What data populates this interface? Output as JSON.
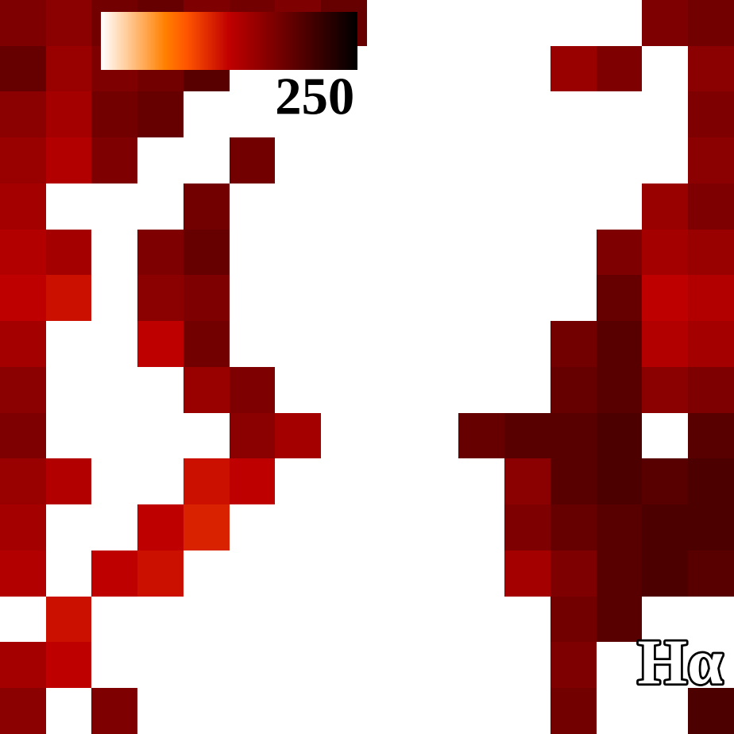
{
  "chart_data": {
    "type": "heatmap",
    "annotations": [
      "Hα"
    ],
    "tick_labels": false,
    "colorbar_range": [
      0,
      300
    ],
    "colorbar_ticks": [
      250
    ],
    "cells": [
      [
        200,
        190,
        210,
        220,
        200,
        210,
        200,
        220,
        null,
        null,
        null,
        null,
        null,
        null,
        200,
        210
      ],
      [
        220,
        180,
        200,
        210,
        230,
        null,
        null,
        null,
        null,
        null,
        null,
        null,
        180,
        200,
        null,
        190
      ],
      [
        190,
        170,
        210,
        220,
        null,
        null,
        null,
        null,
        null,
        null,
        null,
        null,
        null,
        null,
        null,
        200
      ],
      [
        180,
        160,
        200,
        null,
        null,
        210,
        null,
        null,
        null,
        null,
        null,
        null,
        null,
        null,
        null,
        190
      ],
      [
        170,
        null,
        null,
        null,
        210,
        null,
        null,
        null,
        null,
        null,
        null,
        null,
        null,
        null,
        180,
        200
      ],
      [
        160,
        170,
        null,
        200,
        220,
        null,
        null,
        null,
        null,
        null,
        null,
        null,
        null,
        200,
        170,
        180
      ],
      [
        150,
        140,
        null,
        190,
        200,
        null,
        null,
        null,
        null,
        null,
        null,
        null,
        null,
        220,
        150,
        160
      ],
      [
        170,
        null,
        null,
        150,
        210,
        null,
        null,
        null,
        null,
        null,
        null,
        null,
        210,
        230,
        160,
        170
      ],
      [
        190,
        null,
        null,
        null,
        180,
        200,
        null,
        null,
        null,
        null,
        null,
        null,
        220,
        230,
        190,
        200
      ],
      [
        200,
        null,
        null,
        null,
        null,
        190,
        170,
        null,
        null,
        null,
        220,
        230,
        230,
        240,
        null,
        230
      ],
      [
        180,
        160,
        null,
        null,
        140,
        150,
        null,
        null,
        null,
        null,
        null,
        190,
        230,
        240,
        230,
        240
      ],
      [
        170,
        null,
        null,
        150,
        130,
        null,
        null,
        null,
        null,
        null,
        null,
        200,
        220,
        230,
        240,
        240
      ],
      [
        160,
        null,
        150,
        140,
        null,
        null,
        null,
        null,
        null,
        null,
        null,
        170,
        200,
        230,
        240,
        230
      ],
      [
        null,
        140,
        null,
        null,
        null,
        null,
        null,
        null,
        null,
        null,
        null,
        null,
        210,
        230,
        null,
        null
      ],
      [
        170,
        150,
        null,
        null,
        null,
        null,
        null,
        null,
        null,
        null,
        null,
        null,
        200,
        null,
        null,
        null
      ],
      [
        190,
        null,
        200,
        null,
        null,
        null,
        null,
        null,
        null,
        null,
        null,
        null,
        210,
        null,
        null,
        240
      ]
    ]
  }
}
